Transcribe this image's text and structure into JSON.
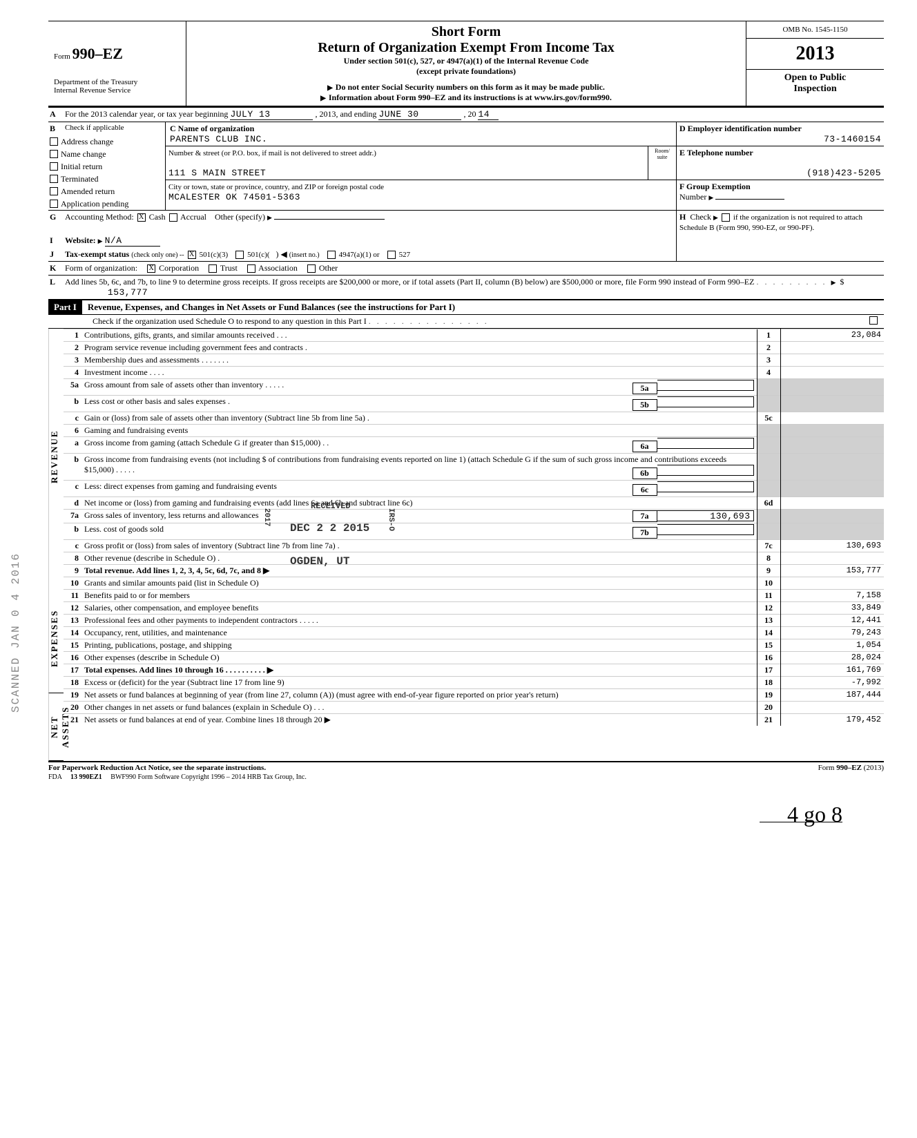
{
  "omb": "OMB No. 1545-1150",
  "year": "2013",
  "form_no": "990–EZ",
  "form_prefix": "Form",
  "short_form": "Short Form",
  "title": "Return of Organization Exempt From Income Tax",
  "under": "Under section 501(c), 527, or 4947(a)(1) of the Internal Revenue Code",
  "except": "(except private foundations)",
  "note1": "Do not enter Social Security numbers on this form as it may be made public.",
  "note2": "Information about Form 990–EZ and its instructions is at www.irs.gov/form990.",
  "dept": "Department of the Treasury",
  "irs": "Internal Revenue Service",
  "open": "Open to Public",
  "inspection": "Inspection",
  "lineA": "For the 2013 calendar year, or tax year beginning",
  "ty_begin": "JULY 13",
  "lineA_mid": ", 2013, and ending",
  "ty_end": "JUNE 30",
  "lineA_end": ", 20",
  "ty_end_yr": "14",
  "B_label": "Check if applicable",
  "B_items": [
    "Address change",
    "Name change",
    "Initial return",
    "Terminated",
    "Amended return",
    "Application pending"
  ],
  "C_label": "C  Name of organization",
  "org_name": "PARENTS CLUB INC.",
  "C_addr_label": "Number & street (or P.O. box, if mail is not delivered to street addr.)",
  "room_label": "Room/\nsuite",
  "street": "111 S MAIN STREET",
  "C_city_label": "City or town, state or province, country, and ZIP or foreign postal code",
  "city": "MCALESTER OK 74501-5363",
  "D_label": "D  Employer identification number",
  "ein": "73-1460154",
  "E_label": "E  Telephone number",
  "phone": "(918)423-5205",
  "F_label": "F  Group Exemption",
  "F_label2": "Number",
  "G_label": "Accounting Method:",
  "G_opts": [
    "Cash",
    "Accrual",
    "Other (specify)"
  ],
  "G_checked": "Cash",
  "H_label": "Check",
  "H_rest": "if the organization is not required to attach Schedule B (Form 990, 990-EZ, or 990-PF).",
  "I_label": "Website:",
  "website": "N/A",
  "J_label": "Tax-exempt status",
  "J_paren": "(check only one) --",
  "J_opts": [
    "501(c)(3)",
    "501(c)(",
    "(insert no.)",
    "4947(a)(1) or",
    "527"
  ],
  "J_checked": "501(c)(3)",
  "K_label": "Form of organization:",
  "K_opts": [
    "Corporation",
    "Trust",
    "Association",
    "Other"
  ],
  "K_checked": "Corporation",
  "L_text": "Add lines 5b, 6c, and 7b, to line 9 to determine gross receipts. If gross receipts are $200,000 or more, or if total assets (Part II, column (B) below) are $500,000 or more, file Form 990 instead of Form 990–EZ",
  "L_amount": "153,777",
  "part1_hdr": "Part I",
  "part1_title": "Revenue, Expenses, and Changes in Net Assets or Fund Balances (see the instructions for Part I)",
  "part1_check": "Check if the organization used Schedule O to respond to any question in this Part I",
  "side_rev": "REVENUE",
  "side_exp": "EXPENSES",
  "side_net": "NET ASSETS",
  "lines": {
    "l1": {
      "n": "1",
      "t": "Contributions, gifts, grants, and similar amounts received . . .",
      "box": "1",
      "amt": "23,084"
    },
    "l2": {
      "n": "2",
      "t": "Program service revenue including government fees and contracts .",
      "box": "2",
      "amt": ""
    },
    "l3": {
      "n": "3",
      "t": "Membership dues and assessments . . . . . . .",
      "box": "3",
      "amt": ""
    },
    "l4": {
      "n": "4",
      "t": "Investment income . . . .",
      "box": "4",
      "amt": ""
    },
    "l5a": {
      "n": "5a",
      "t": "Gross amount from sale of assets other than inventory . . . . .",
      "ibox": "5a"
    },
    "l5b": {
      "n": "b",
      "t": "Less cost or other basis and sales expenses .",
      "ibox": "5b"
    },
    "l5c": {
      "n": "c",
      "t": "Gain or (loss) from sale of assets other than inventory (Subtract line 5b from line 5a) .",
      "box": "5c",
      "amt": ""
    },
    "l6": {
      "n": "6",
      "t": "Gaming and fundraising events"
    },
    "l6a": {
      "n": "a",
      "t": "Gross income from gaming (attach Schedule G if greater than $15,000) . .",
      "ibox": "6a"
    },
    "l6b": {
      "n": "b",
      "t": "Gross income from fundraising events (not including   $                                of contributions from fundraising events reported on line 1) (attach Schedule G if the sum of such gross income and contributions exceeds $15,000) . . . . .",
      "ibox": "6b"
    },
    "l6c": {
      "n": "c",
      "t": "Less: direct expenses from gaming and fundraising events",
      "ibox": "6c"
    },
    "l6d": {
      "n": "d",
      "t": "Net income or (loss) from gaming and fundraising events (add lines 6a and 6b and subtract line 6c)",
      "box": "6d",
      "amt": ""
    },
    "l7a": {
      "n": "7a",
      "t": "Gross sales of inventory, less returns and allowances",
      "ibox": "7a",
      "iamt": "130,693"
    },
    "l7b": {
      "n": "b",
      "t": "Less. cost of goods sold",
      "ibox": "7b"
    },
    "l7c": {
      "n": "c",
      "t": "Gross profit or (loss) from sales of inventory (Subtract line 7b from line 7a) .",
      "box": "7c",
      "amt": "130,693"
    },
    "l8": {
      "n": "8",
      "t": "Other revenue (describe in Schedule O) .",
      "box": "8",
      "amt": ""
    },
    "l9": {
      "n": "9",
      "t": "Total revenue. Add lines 1, 2, 3, 4, 5c, 6d, 7c, and 8",
      "box": "9",
      "amt": "153,777",
      "bold": true
    },
    "l10": {
      "n": "10",
      "t": "Grants and similar amounts paid (list in Schedule O)",
      "box": "10",
      "amt": ""
    },
    "l11": {
      "n": "11",
      "t": "Benefits paid to or for members",
      "box": "11",
      "amt": "7,158"
    },
    "l12": {
      "n": "12",
      "t": "Salaries, other compensation, and employee benefits",
      "box": "12",
      "amt": "33,849"
    },
    "l13": {
      "n": "13",
      "t": "Professional fees and other payments to independent contractors . . . . .",
      "box": "13",
      "amt": "12,441"
    },
    "l14": {
      "n": "14",
      "t": "Occupancy, rent, utilities, and maintenance",
      "box": "14",
      "amt": "79,243"
    },
    "l15": {
      "n": "15",
      "t": "Printing, publications, postage, and shipping",
      "box": "15",
      "amt": "1,054"
    },
    "l16": {
      "n": "16",
      "t": "Other expenses (describe in Schedule O)",
      "box": "16",
      "amt": "28,024"
    },
    "l17": {
      "n": "17",
      "t": "Total expenses. Add lines 10 through 16 .  . . . . .  . . . .",
      "box": "17",
      "amt": "161,769",
      "bold": true
    },
    "l18": {
      "n": "18",
      "t": "Excess or (deficit) for the year (Subtract line 17 from line 9)",
      "box": "18",
      "amt": "-7,992"
    },
    "l19": {
      "n": "19",
      "t": "Net assets or fund balances at beginning of year (from line 27, column (A)) (must agree with end-of-year figure reported on prior year's return)",
      "box": "19",
      "amt": "187,444"
    },
    "l20": {
      "n": "20",
      "t": "Other changes in net assets or fund balances (explain in Schedule O) . . .",
      "box": "20",
      "amt": ""
    },
    "l21": {
      "n": "21",
      "t": "Net assets or fund balances at end of year. Combine lines 18 through 20",
      "box": "21",
      "amt": "179,452"
    }
  },
  "stamp_received": "RECEIVED",
  "stamp_date": "DEC 2 2 2015",
  "stamp_ogden": "OGDEN, UT",
  "stamp_irs": "IRS-O",
  "stamp_2017": "2017",
  "paperwork": "For Paperwork Reduction Act Notice, see the separate instructions.",
  "form_footer": "Form 990–EZ (2013)",
  "fda_line": "FDA",
  "fda_code": "13   990EZ1",
  "fda_sw": "BWF990      Form Software Copyright 1996 – 2014 HRB Tax Group, Inc.",
  "hand_note": "4 go 8",
  "scan_side": "SCANNED  JAN 0 4 2016",
  "colors": {
    "ink": "#000000",
    "bg": "#ffffff",
    "shade": "#d0d0d0",
    "faint": "#cccccc"
  }
}
